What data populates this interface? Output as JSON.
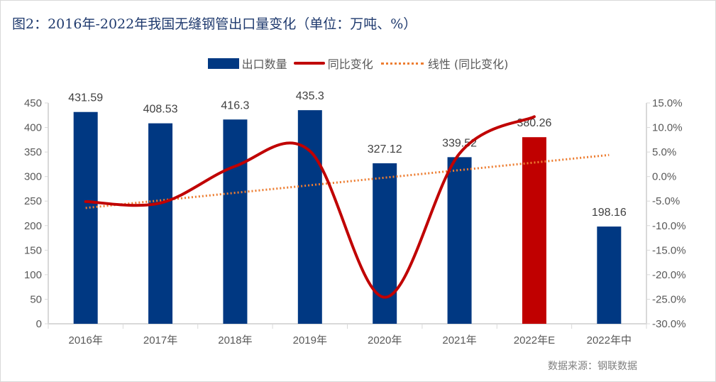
{
  "title": "图2：2016年-2022年我国无缝钢管出口量变化（单位：万吨、%）",
  "source": "数据来源：钢联数据",
  "chart_data": {
    "type": "bar",
    "categories": [
      "2016年",
      "2017年",
      "2018年",
      "2019年",
      "2020年",
      "2021年",
      "2022年E",
      "2022年中"
    ],
    "series": [
      {
        "name": "出口数量",
        "type": "bar",
        "axis": "left",
        "values": [
          431.59,
          408.53,
          416.3,
          435.3,
          327.12,
          339.52,
          380.26,
          198.16
        ],
        "labels": [
          "431.59",
          "408.53",
          "416.3",
          "435.3",
          "327.12",
          "339.52",
          "380.26",
          "198.16"
        ],
        "color": "#003882",
        "highlight": {
          "index": 6,
          "color": "#c00000"
        }
      },
      {
        "name": "同比变化",
        "type": "line",
        "axis": "right",
        "smooth": true,
        "values": [
          -5.1,
          -5.4,
          2.1,
          5.2,
          -24.6,
          4.7,
          12.2,
          null
        ],
        "color": "#c00000"
      },
      {
        "name": "线性 (同比变化)",
        "type": "trendline",
        "axis": "right",
        "values": [
          -6.4,
          null,
          null,
          null,
          null,
          null,
          null,
          4.4
        ],
        "color": "#ed7d31"
      }
    ],
    "left_axis": {
      "ylim": [
        0,
        450
      ],
      "ticks": [
        "0",
        "50",
        "100",
        "150",
        "200",
        "250",
        "300",
        "350",
        "400",
        "450"
      ]
    },
    "right_axis": {
      "ylim": [
        -30,
        15
      ],
      "ticks": [
        "-30.0%",
        "-25.0%",
        "-20.0%",
        "-15.0%",
        "-10.0%",
        "-5.0%",
        "0.0%",
        "5.0%",
        "10.0%",
        "15.0%"
      ]
    },
    "legend": "top",
    "grid": false
  }
}
